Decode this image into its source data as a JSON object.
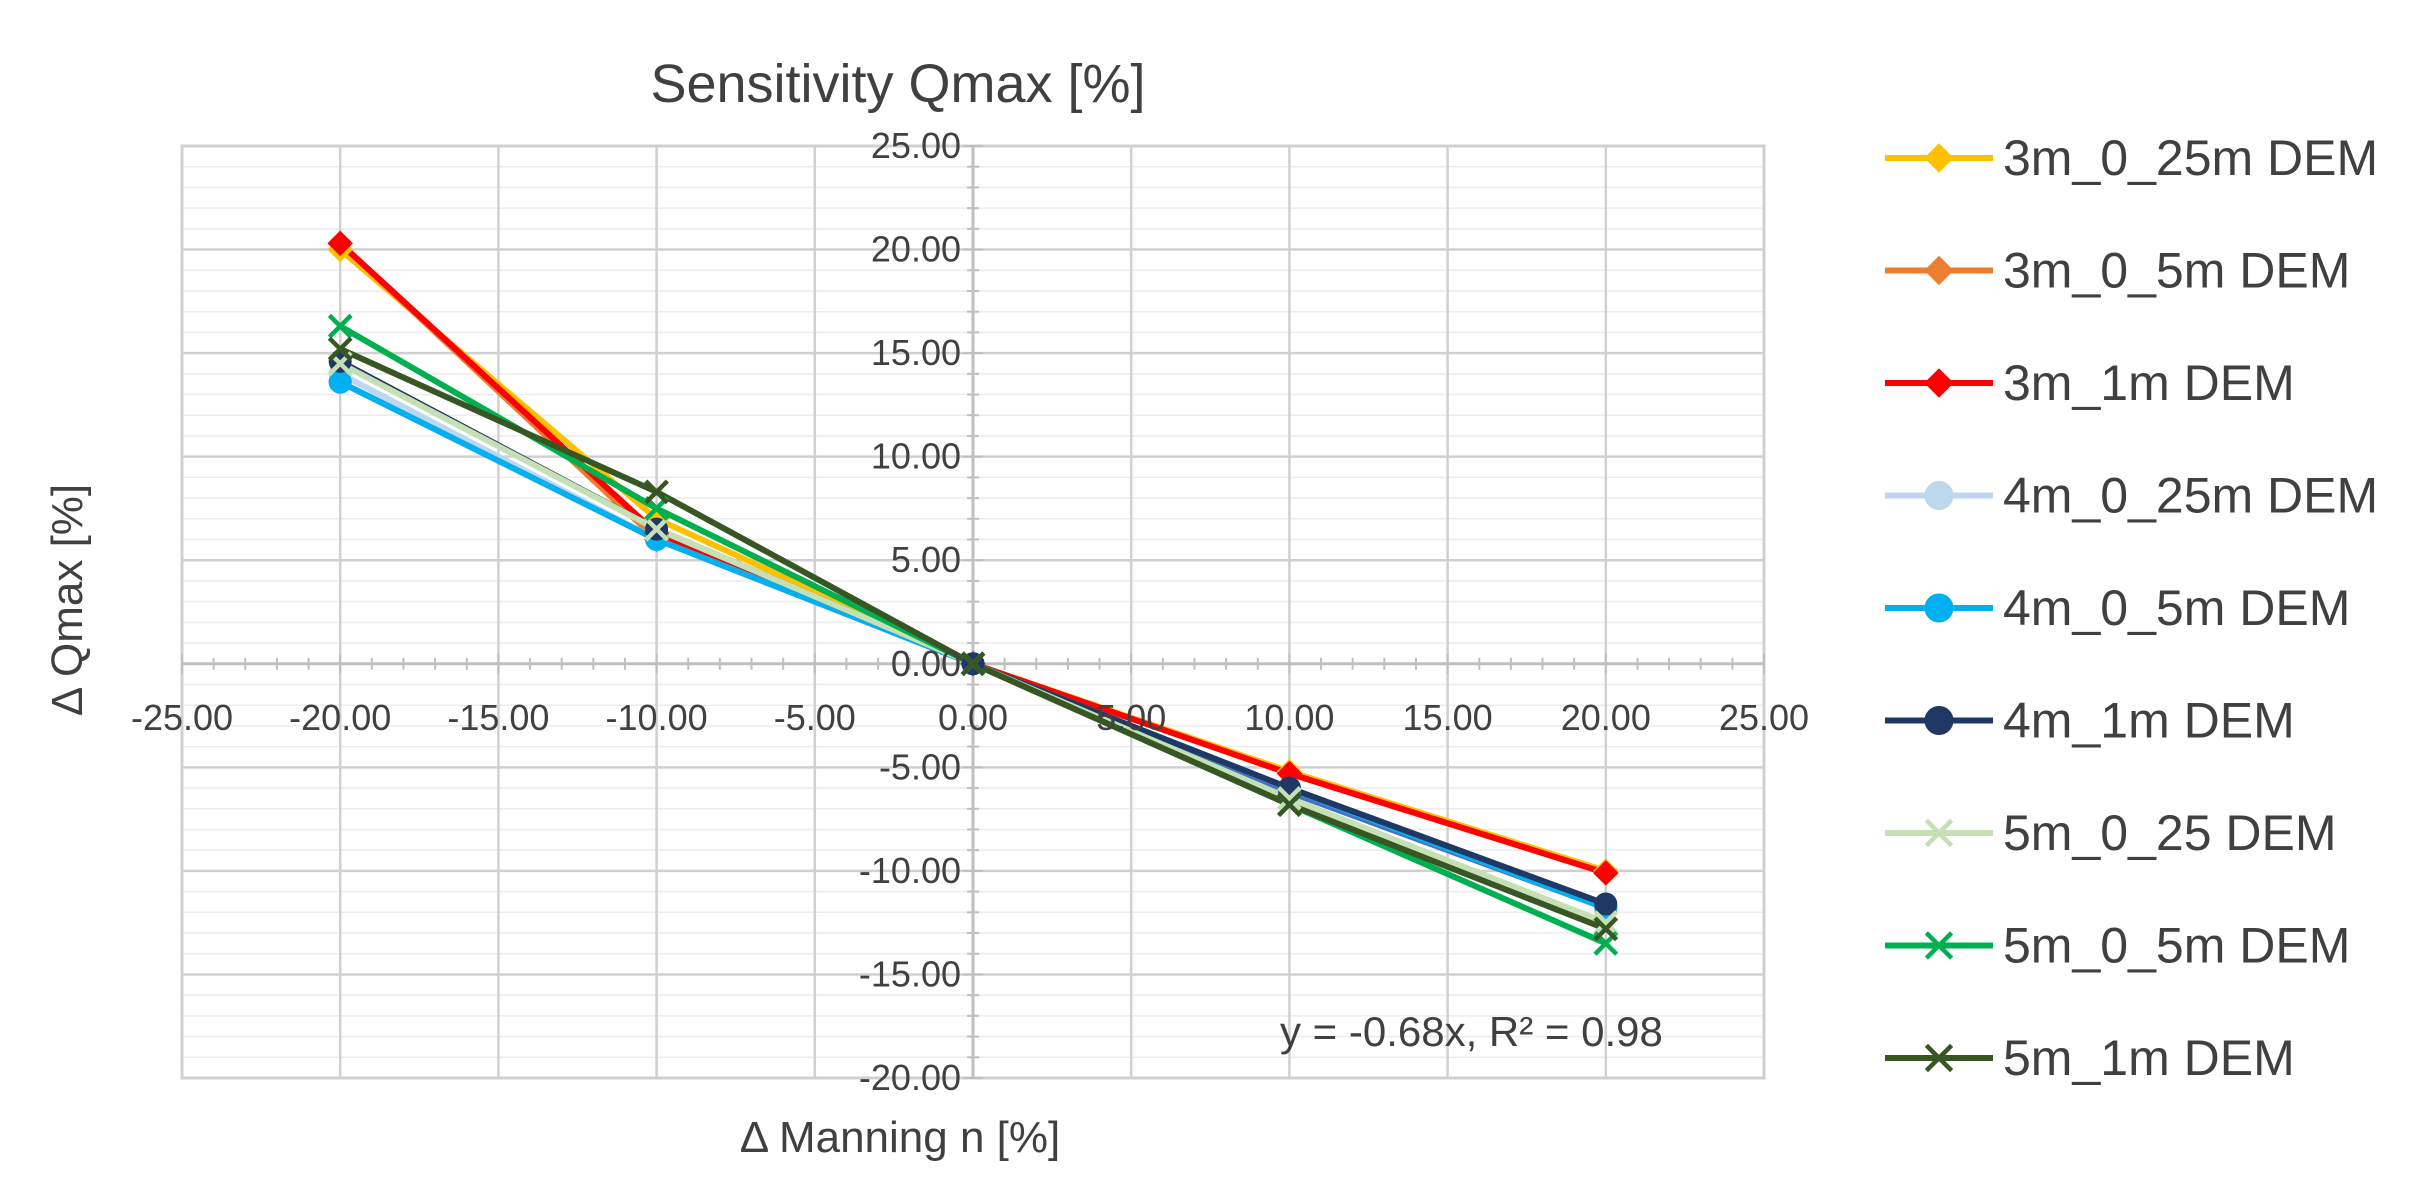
{
  "chart_data": {
    "type": "line",
    "title": "Sensitivity Qmax [%]",
    "xlabel": "Δ Manning n [%]",
    "ylabel": "Δ Qmax [%]",
    "xlim": [
      -25,
      25
    ],
    "ylim": [
      -20,
      25
    ],
    "x_ticks": [
      "-25.00",
      "-20.00",
      "-15.00",
      "-10.00",
      "-5.00",
      "0.00",
      "5.00",
      "10.00",
      "15.00",
      "20.00",
      "25.00"
    ],
    "y_ticks": [
      "25.00",
      "20.00",
      "15.00",
      "10.00",
      "5.00",
      "0.00",
      "-5.00",
      "-10.00",
      "-15.00",
      "-20.00"
    ],
    "grid": true,
    "legend_position": "right",
    "x": [
      -20,
      -10,
      0,
      10,
      20
    ],
    "series": [
      {
        "name": "3m_0_25m DEM",
        "color": "#FFC000",
        "marker": "diamond",
        "values": [
          20.0,
          7.0,
          0,
          -5.2,
          -10.0
        ]
      },
      {
        "name": "3m_0_5m DEM",
        "color": "#ED7D31",
        "marker": "diamond",
        "values": [
          20.3,
          6.0,
          0,
          -5.3,
          -10.1
        ]
      },
      {
        "name": "3m_1m DEM",
        "color": "#FF0000",
        "marker": "diamond",
        "values": [
          20.3,
          6.3,
          0,
          -5.3,
          -10.1
        ]
      },
      {
        "name": "4m_0_25m DEM",
        "color": "#BDD7EE",
        "marker": "circle",
        "values": [
          14.0,
          6.0,
          0,
          -6.0,
          -11.8
        ]
      },
      {
        "name": "4m_0_5m DEM",
        "color": "#00B0F0",
        "marker": "circle",
        "values": [
          13.6,
          6.0,
          0,
          -6.0,
          -11.8
        ]
      },
      {
        "name": "4m_1m DEM",
        "color": "#1F3864",
        "marker": "circle",
        "values": [
          14.6,
          6.5,
          0,
          -6.0,
          -11.6
        ]
      },
      {
        "name": "5m_0_25 DEM",
        "color": "#C5E0B4",
        "marker": "x",
        "values": [
          14.5,
          6.5,
          0,
          -6.5,
          -12.5
        ]
      },
      {
        "name": "5m_0_5m DEM",
        "color": "#00B050",
        "marker": "x",
        "values": [
          16.3,
          7.5,
          0,
          -6.8,
          -13.5
        ]
      },
      {
        "name": "5m_1m DEM",
        "color": "#375623",
        "marker": "x",
        "values": [
          15.2,
          8.3,
          0,
          -6.8,
          -12.8
        ]
      }
    ],
    "extra_line": {
      "color": "#4472C4",
      "values": [
        13.6,
        6.0,
        0,
        -6.2,
        -11.8
      ]
    },
    "annotation": "y = -0.68x, R² = 0.98"
  }
}
